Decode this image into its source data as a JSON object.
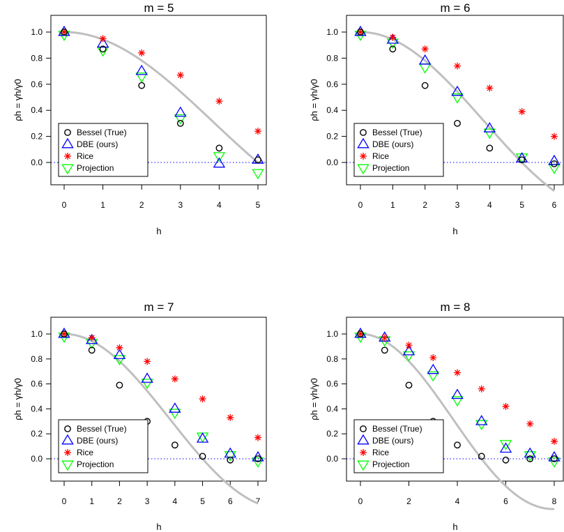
{
  "axis_labels": {
    "x": "h",
    "y": "ρh = γh/γ0"
  },
  "legend": {
    "placement": "bottom-left",
    "entries": [
      "Bessel (True)",
      "DBE (ours)",
      "Rice",
      "Projection"
    ]
  },
  "colors": {
    "bessel": "#000000",
    "dbe": "#0000ff",
    "rice": "#ff0000",
    "projection": "#00ff00",
    "true_curve": "#bfbfbf",
    "zero_line": "#0000ff"
  },
  "chart_data": [
    {
      "type": "scatter",
      "title": "m = 5",
      "xlabel": "h",
      "ylabel": "ρh = γh/γ0",
      "xlim": [
        0,
        5
      ],
      "ylim": [
        -0.1,
        1.05
      ],
      "xticks": [
        0,
        1,
        2,
        3,
        4,
        5
      ],
      "yticks": [
        0.0,
        0.2,
        0.4,
        0.6,
        0.8,
        1.0
      ],
      "grid": false,
      "legend": "bottom-left",
      "series": [
        {
          "name": "Bessel (True)",
          "marker": "circle",
          "x": [
            0,
            1,
            2,
            3,
            4,
            5
          ],
          "values": [
            1.0,
            0.87,
            0.59,
            0.3,
            0.11,
            0.02
          ]
        },
        {
          "name": "DBE (ours)",
          "marker": "triangle-up",
          "x": [
            0,
            1,
            2,
            3,
            4,
            5
          ],
          "values": [
            1.0,
            0.91,
            0.7,
            0.38,
            -0.01,
            0.02
          ]
        },
        {
          "name": "Rice",
          "marker": "asterisk",
          "x": [
            0,
            1,
            2,
            3,
            4,
            5
          ],
          "values": [
            1.0,
            0.95,
            0.84,
            0.67,
            0.47,
            0.24
          ]
        },
        {
          "name": "Projection",
          "marker": "triangle-down",
          "x": [
            0,
            1,
            2,
            3,
            4,
            5
          ],
          "values": [
            0.98,
            0.86,
            0.66,
            0.34,
            0.05,
            -0.08
          ]
        }
      ]
    },
    {
      "type": "scatter",
      "title": "m = 6",
      "xlabel": "h",
      "ylabel": "ρh = γh/γ0",
      "xlim": [
        0,
        6
      ],
      "ylim": [
        -0.1,
        1.05
      ],
      "xticks": [
        0,
        1,
        2,
        3,
        4,
        5,
        6
      ],
      "yticks": [
        0.0,
        0.2,
        0.4,
        0.6,
        0.8,
        1.0
      ],
      "grid": false,
      "legend": "bottom-left",
      "series": [
        {
          "name": "Bessel (True)",
          "marker": "circle",
          "x": [
            0,
            1,
            2,
            3,
            4,
            5,
            6
          ],
          "values": [
            1.0,
            0.87,
            0.59,
            0.3,
            0.11,
            0.02,
            -0.01
          ]
        },
        {
          "name": "DBE (ours)",
          "marker": "triangle-up",
          "x": [
            0,
            1,
            2,
            3,
            4,
            5,
            6
          ],
          "values": [
            1.0,
            0.94,
            0.78,
            0.54,
            0.26,
            0.03,
            0.01
          ]
        },
        {
          "name": "Rice",
          "marker": "asterisk",
          "x": [
            0,
            1,
            2,
            3,
            4,
            5,
            6
          ],
          "values": [
            1.0,
            0.96,
            0.87,
            0.74,
            0.57,
            0.39,
            0.2
          ]
        },
        {
          "name": "Projection",
          "marker": "triangle-down",
          "x": [
            0,
            1,
            2,
            3,
            4,
            5,
            6
          ],
          "values": [
            0.98,
            0.92,
            0.73,
            0.5,
            0.23,
            0.04,
            -0.04
          ]
        }
      ]
    },
    {
      "type": "scatter",
      "title": "m = 7",
      "xlabel": "h",
      "ylabel": "ρh = γh/γ0",
      "xlim": [
        0,
        7
      ],
      "ylim": [
        -0.1,
        1.05
      ],
      "xticks": [
        0,
        1,
        2,
        3,
        4,
        5,
        6,
        7
      ],
      "yticks": [
        0.0,
        0.2,
        0.4,
        0.6,
        0.8,
        1.0
      ],
      "grid": false,
      "legend": "bottom-left",
      "series": [
        {
          "name": "Bessel (True)",
          "marker": "circle",
          "x": [
            0,
            1,
            2,
            3,
            4,
            5,
            6,
            7
          ],
          "values": [
            1.0,
            0.87,
            0.59,
            0.3,
            0.11,
            0.02,
            -0.01,
            0.0
          ]
        },
        {
          "name": "DBE (ours)",
          "marker": "triangle-up",
          "x": [
            0,
            1,
            2,
            3,
            4,
            5,
            6,
            7
          ],
          "values": [
            1.0,
            0.95,
            0.83,
            0.64,
            0.4,
            0.16,
            0.04,
            0.01
          ]
        },
        {
          "name": "Rice",
          "marker": "asterisk",
          "x": [
            0,
            1,
            2,
            3,
            4,
            5,
            6,
            7
          ],
          "values": [
            1.0,
            0.97,
            0.89,
            0.78,
            0.64,
            0.48,
            0.33,
            0.17
          ]
        },
        {
          "name": "Projection",
          "marker": "triangle-down",
          "x": [
            0,
            1,
            2,
            3,
            4,
            5,
            6,
            7
          ],
          "values": [
            0.98,
            0.93,
            0.8,
            0.61,
            0.37,
            0.18,
            0.03,
            -0.02
          ]
        }
      ]
    },
    {
      "type": "scatter",
      "title": "m = 8",
      "xlabel": "h",
      "ylabel": "ρh = γh/γ0",
      "xlim": [
        0,
        8
      ],
      "ylim": [
        -0.1,
        1.05
      ],
      "xticks": [
        0,
        2,
        4,
        6,
        8
      ],
      "yticks": [
        0.0,
        0.2,
        0.4,
        0.6,
        0.8,
        1.0
      ],
      "grid": false,
      "legend": "bottom-left",
      "series": [
        {
          "name": "Bessel (True)",
          "marker": "circle",
          "x": [
            0,
            1,
            2,
            3,
            4,
            5,
            6,
            7,
            8
          ],
          "values": [
            1.0,
            0.87,
            0.59,
            0.3,
            0.11,
            0.02,
            -0.01,
            0.0,
            0.0
          ]
        },
        {
          "name": "DBE (ours)",
          "marker": "triangle-up",
          "x": [
            0,
            1,
            2,
            3,
            4,
            5,
            6,
            7,
            8
          ],
          "values": [
            1.0,
            0.97,
            0.86,
            0.71,
            0.51,
            0.3,
            0.08,
            0.04,
            0.01
          ]
        },
        {
          "name": "Rice",
          "marker": "asterisk",
          "x": [
            0,
            1,
            2,
            3,
            4,
            5,
            6,
            7,
            8
          ],
          "values": [
            1.0,
            0.97,
            0.91,
            0.81,
            0.69,
            0.56,
            0.42,
            0.28,
            0.14
          ]
        },
        {
          "name": "Projection",
          "marker": "triangle-down",
          "x": [
            0,
            1,
            2,
            3,
            4,
            5,
            6,
            7,
            8
          ],
          "values": [
            0.98,
            0.95,
            0.83,
            0.67,
            0.47,
            0.28,
            0.12,
            0.03,
            -0.02
          ]
        }
      ]
    }
  ]
}
